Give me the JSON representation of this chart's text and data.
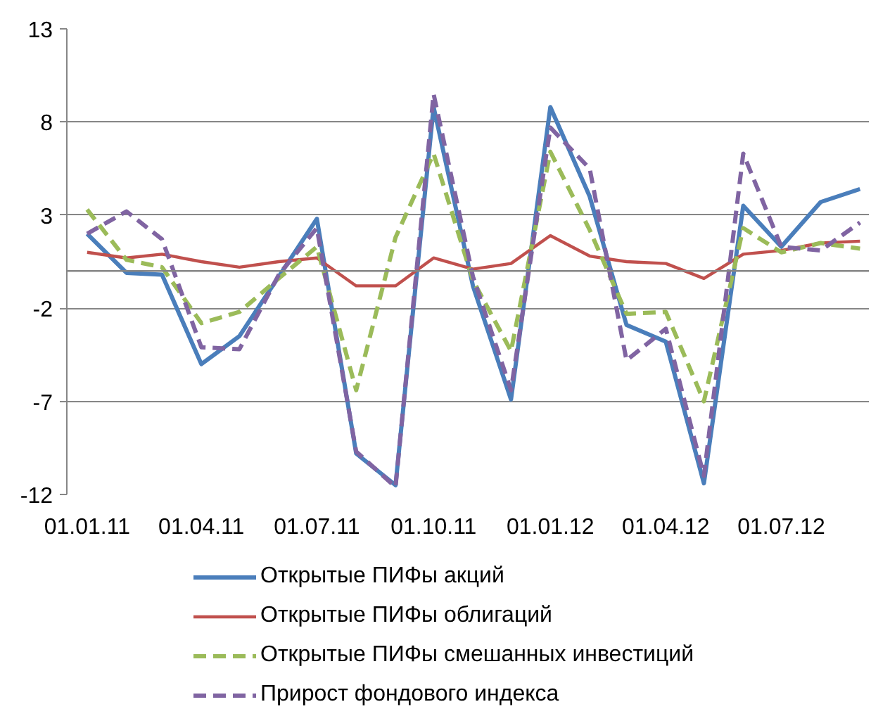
{
  "chart_data": {
    "type": "line",
    "x": [
      "2011-01",
      "2011-02",
      "2011-03",
      "2011-04",
      "2011-05",
      "2011-06",
      "2011-07",
      "2011-08",
      "2011-09",
      "2011-10",
      "2011-11",
      "2011-12",
      "2012-01",
      "2012-02",
      "2012-03",
      "2012-04",
      "2012-05",
      "2012-06",
      "2012-07",
      "2012-08",
      "2012-09"
    ],
    "xlim": [
      "2010-12-16",
      "2012-09-08"
    ],
    "xticks": [
      {
        "value": "2011-01",
        "label": "01.01.11"
      },
      {
        "value": "2011-04",
        "label": "01.04.11"
      },
      {
        "value": "2011-07",
        "label": "01.07.11"
      },
      {
        "value": "2011-10",
        "label": "01.10.11"
      },
      {
        "value": "2012-01",
        "label": "01.01.12"
      },
      {
        "value": "2012-04",
        "label": "01.04.12"
      },
      {
        "value": "2012-07",
        "label": "01.07.12"
      }
    ],
    "ylim": [
      -12,
      13
    ],
    "yticks": [
      -12,
      -7,
      -2,
      3,
      8,
      13
    ],
    "grid": "y",
    "legend": "bottom",
    "ref_lines": [
      {
        "axis": "y",
        "value": 0,
        "color": "#868686"
      }
    ],
    "series": [
      {
        "name": "Открытые ПИФы акций",
        "color": "#4a7ebb",
        "line_style": "solid",
        "values": [
          2.0,
          -0.1,
          -0.2,
          -5.0,
          -3.5,
          -0.3,
          2.8,
          -9.8,
          -11.5,
          8.8,
          -0.8,
          -6.9,
          8.8,
          4.0,
          -2.9,
          -3.8,
          -11.4,
          3.5,
          1.3,
          3.7,
          4.4
        ]
      },
      {
        "name": "Открытые ПИФы облигаций",
        "color": "#c0504d",
        "line_style": "solid",
        "values": [
          1.0,
          0.7,
          0.9,
          0.5,
          0.2,
          0.5,
          0.7,
          -0.8,
          -0.8,
          0.7,
          0.1,
          0.4,
          1.9,
          0.8,
          0.5,
          0.4,
          -0.4,
          0.9,
          1.1,
          1.5,
          1.6
        ]
      },
      {
        "name": "Открытые ПИФы смешанных инвестиций",
        "color": "#9bbb59",
        "line_style": "dashed",
        "values": [
          3.3,
          0.6,
          0.2,
          -2.8,
          -2.2,
          -0.4,
          1.3,
          -6.4,
          1.8,
          6.3,
          -0.5,
          -4.3,
          6.4,
          2.2,
          -2.3,
          -2.2,
          -7.0,
          2.3,
          1.0,
          1.5,
          1.2
        ]
      },
      {
        "name": "Прирост фондового индекса",
        "color": "#8064a2",
        "line_style": "dashed",
        "values": [
          2.0,
          3.2,
          1.7,
          -4.1,
          -4.2,
          -0.2,
          2.3,
          -9.7,
          -11.6,
          9.5,
          -0.3,
          -6.4,
          7.7,
          5.5,
          -4.8,
          -3.1,
          -11.0,
          6.3,
          1.3,
          1.1,
          2.6
        ]
      }
    ]
  }
}
